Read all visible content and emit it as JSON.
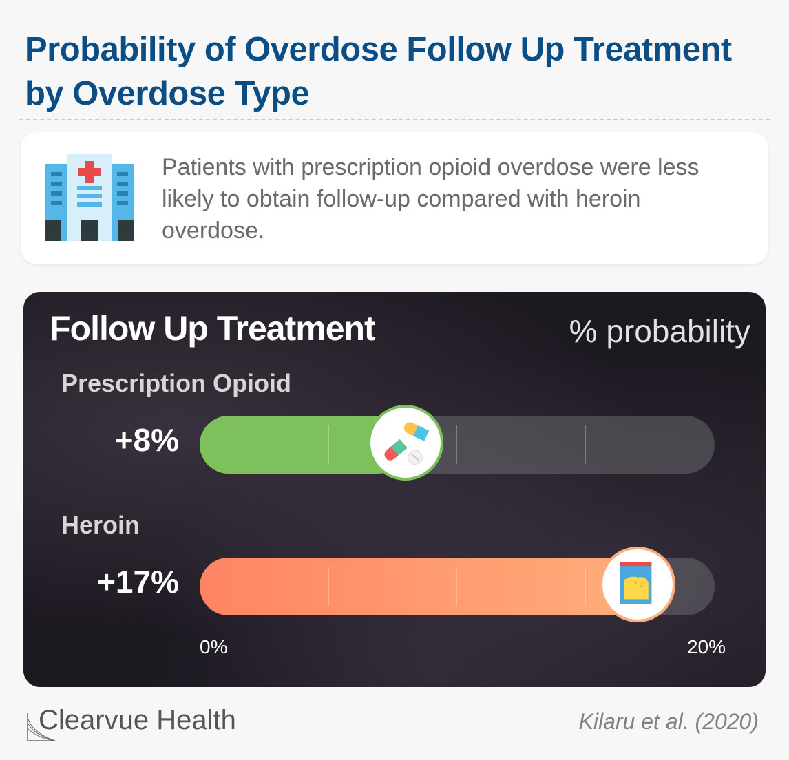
{
  "title": "Probability of Overdose Follow Up Treatment by Overdose Type",
  "note": {
    "icon": "hospital-icon",
    "text": "Patients with prescription opioid overdose were less likely to obtain follow-up compared with heroin overdose."
  },
  "chart_data": {
    "type": "bar",
    "title": "Follow Up Treatment",
    "unit_label": "% probability",
    "categories": [
      "Prescription Opioid",
      "Heroin"
    ],
    "values": [
      8,
      17
    ],
    "value_labels": [
      "+8%",
      "+17%"
    ],
    "xlim": [
      0,
      20
    ],
    "tick_labels": [
      "0%",
      "20%"
    ],
    "colors": [
      "#7ec05c",
      "#ff8c66"
    ],
    "icons": [
      "pills-icon",
      "powder-bag-icon"
    ],
    "grid": true
  },
  "brand": "Clearvue Health",
  "citation": "Kilaru et al. (2020)"
}
